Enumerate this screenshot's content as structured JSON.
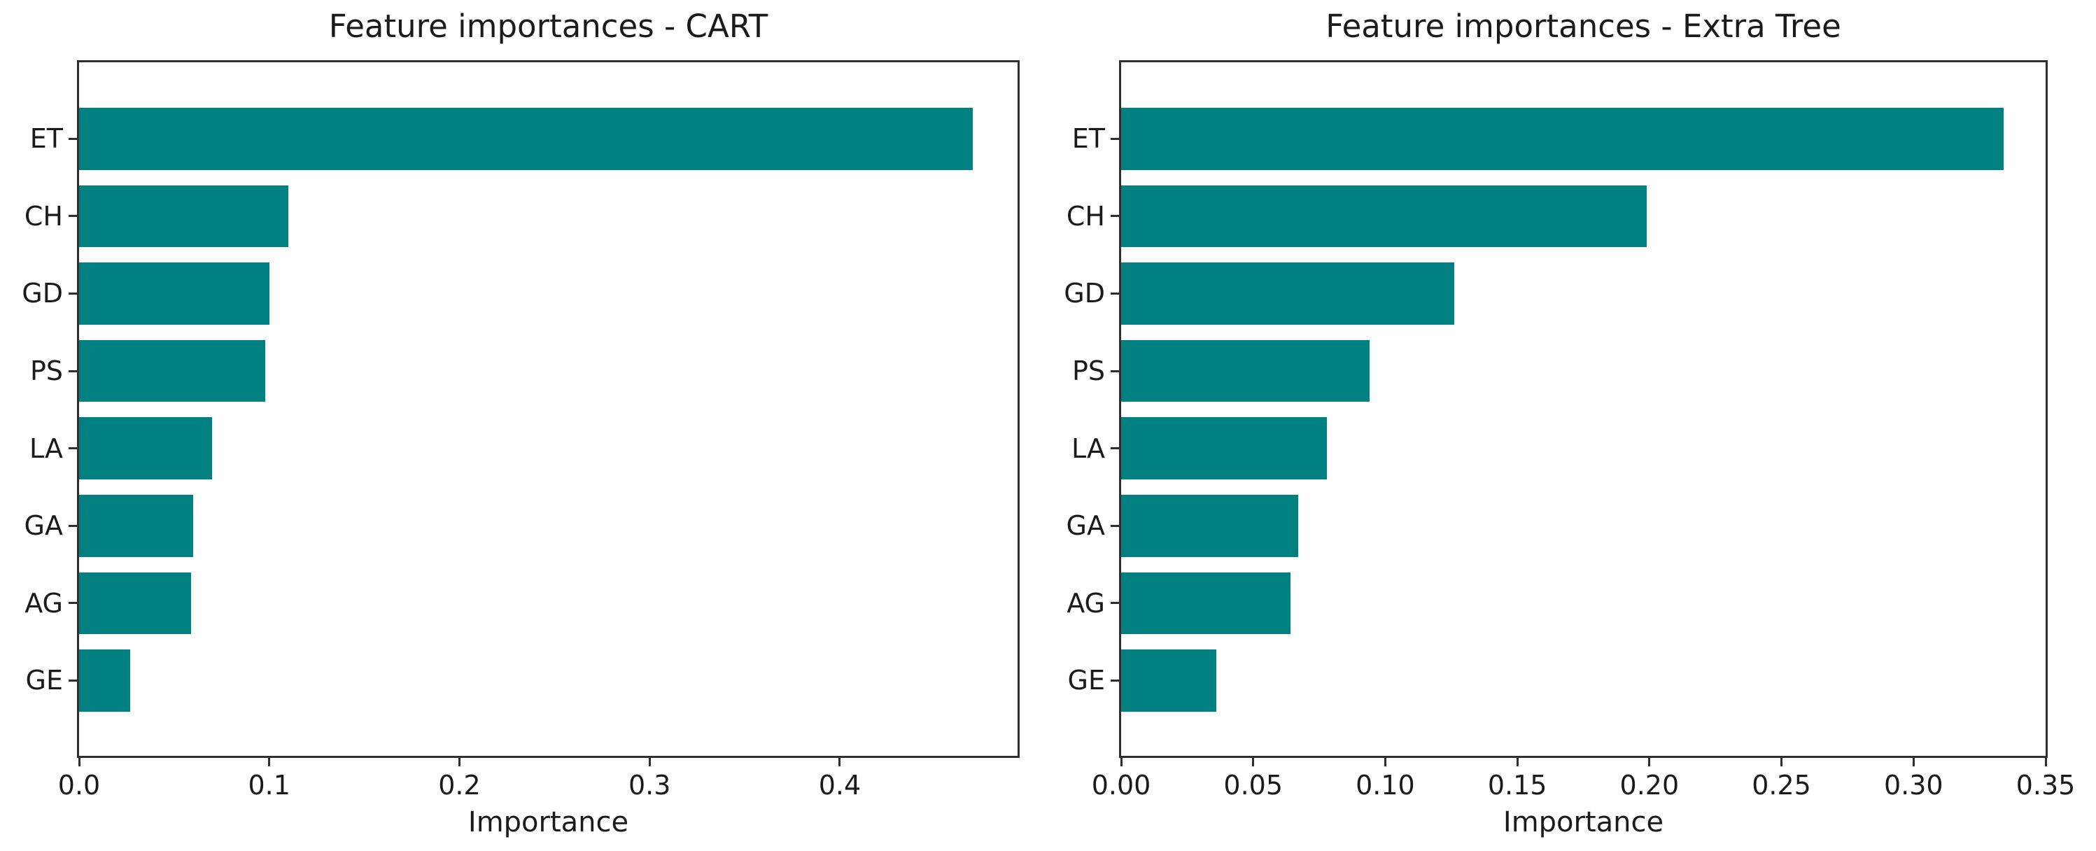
{
  "figure": {
    "background": "#ffffff"
  },
  "style": {
    "bar_color": "#008080",
    "spine_color": "#2f2f2f",
    "text_color": "#1a1a1a"
  },
  "chart_data": [
    {
      "type": "bar",
      "orientation": "horizontal",
      "title": "Feature importances - CART",
      "xlabel": "Importance",
      "ylabel": "",
      "legend": null,
      "grid": false,
      "categories": [
        "ET",
        "CH",
        "GD",
        "PS",
        "LA",
        "GA",
        "AG",
        "GE"
      ],
      "values": [
        0.47,
        0.11,
        0.1,
        0.098,
        0.07,
        0.06,
        0.059,
        0.027
      ],
      "xlim": [
        0,
        0.4935
      ],
      "xtick_values": [
        0.0,
        0.1,
        0.2,
        0.3,
        0.4
      ],
      "xtick_labels": [
        "0.0",
        "0.1",
        "0.2",
        "0.3",
        "0.4"
      ],
      "bar_color": "#008080"
    },
    {
      "type": "bar",
      "orientation": "horizontal",
      "title": "Feature importances - Extra Tree",
      "xlabel": "Importance",
      "ylabel": "",
      "legend": null,
      "grid": false,
      "categories": [
        "ET",
        "CH",
        "GD",
        "PS",
        "LA",
        "GA",
        "AG",
        "GE"
      ],
      "values": [
        0.334,
        0.199,
        0.126,
        0.094,
        0.078,
        0.067,
        0.064,
        0.036
      ],
      "xlim": [
        0,
        0.35
      ],
      "xtick_values": [
        0.0,
        0.05,
        0.1,
        0.15,
        0.2,
        0.25,
        0.3,
        0.35
      ],
      "xtick_labels": [
        "0.00",
        "0.05",
        "0.10",
        "0.15",
        "0.20",
        "0.25",
        "0.30",
        "0.35"
      ],
      "bar_color": "#008080"
    }
  ]
}
